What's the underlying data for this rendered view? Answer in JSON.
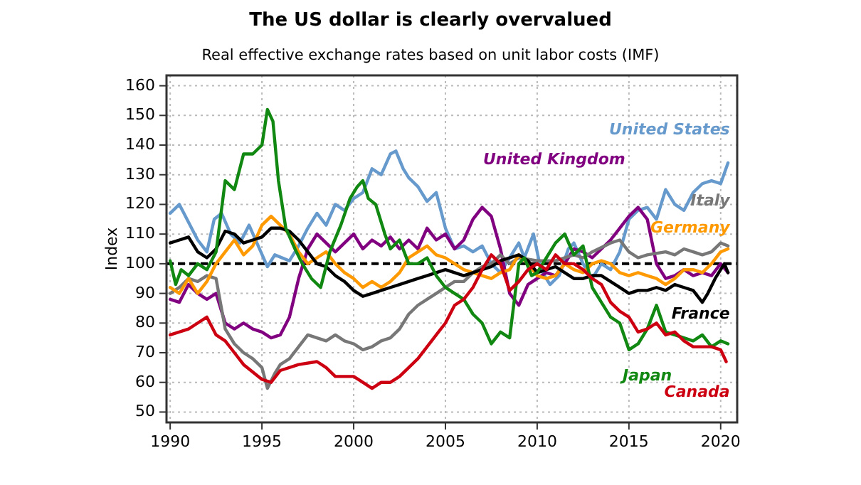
{
  "chart_data": {
    "type": "line",
    "title": "The US dollar is clearly overvalued",
    "subtitle": "Real effective exchange rates based on unit labor costs (IMF)",
    "ylabel": "Index",
    "xlim": [
      1989.8,
      2020.9
    ],
    "xticks": [
      1990,
      1995,
      2000,
      2005,
      2010,
      2015,
      2020
    ],
    "ylim": [
      46.5,
      163.5
    ],
    "yticks": [
      50,
      60,
      70,
      80,
      90,
      100,
      110,
      120,
      130,
      140,
      150,
      160
    ],
    "grid": true,
    "marker": "none",
    "line_style": "solid",
    "ref_lines": [
      {
        "axis": "y",
        "value": 100,
        "color": "#000000",
        "line_style": "dashed"
      }
    ],
    "series": [
      {
        "name": "United States",
        "color": "#6699cc",
        "x": [
          1990,
          1990.5,
          1991,
          1991.5,
          1992,
          1992.4,
          1992.8,
          1993.3,
          1993.8,
          1994.3,
          1994.8,
          1995.3,
          1995.7,
          1996.5,
          1997,
          1997.5,
          1998,
          1998.5,
          1999,
          1999.5,
          2000,
          2000.5,
          2001,
          2001.5,
          2002,
          2002.3,
          2002.7,
          2003,
          2003.5,
          2004,
          2004.5,
          2005,
          2005.5,
          2006,
          2006.5,
          2007,
          2007.5,
          2008,
          2008.5,
          2009,
          2009.3,
          2009.8,
          2010.2,
          2010.7,
          2011.2,
          2011.7,
          2012,
          2012.5,
          2013,
          2013.5,
          2014,
          2014.5,
          2015,
          2015.5,
          2016,
          2016.5,
          2017,
          2017.5,
          2018,
          2018.5,
          2019,
          2019.5,
          2020,
          2020.4
        ],
        "values": [
          117,
          120,
          114,
          108,
          104,
          115,
          117,
          110,
          107,
          113,
          106,
          99,
          103,
          101,
          106,
          112,
          117,
          113,
          120,
          118,
          122,
          124,
          132,
          130,
          137,
          138,
          132,
          129,
          126,
          121,
          124,
          112,
          105,
          106,
          104,
          106,
          100,
          97,
          102,
          107,
          102,
          110,
          98,
          93,
          96,
          105,
          107,
          100,
          95,
          100,
          98,
          104,
          115,
          118,
          119,
          115,
          125,
          120,
          118,
          124,
          127,
          128,
          127,
          134
        ]
      },
      {
        "name": "United Kingdom",
        "color": "#800080",
        "x": [
          1990,
          1990.5,
          1991,
          1991.5,
          1992,
          1992.5,
          1993,
          1993.5,
          1994,
          1994.5,
          1995,
          1995.5,
          1996,
          1996.5,
          1997,
          1997.5,
          1998,
          1998.5,
          1999,
          1999.5,
          2000,
          2000.5,
          2001,
          2001.5,
          2002,
          2002.5,
          2003,
          2003.5,
          2004,
          2004.5,
          2005,
          2005.5,
          2006,
          2006.5,
          2007,
          2007.5,
          2008,
          2008.5,
          2009,
          2009.5,
          2010,
          2010.5,
          2011,
          2011.5,
          2012,
          2012.5,
          2013,
          2013.5,
          2014,
          2014.5,
          2015,
          2015.5,
          2016,
          2016.5,
          2017,
          2017.5,
          2018,
          2018.5,
          2019,
          2019.5,
          2020,
          2020.4
        ],
        "values": [
          88,
          87,
          93,
          90,
          88,
          90,
          80,
          78,
          80,
          78,
          77,
          75,
          76,
          82,
          95,
          105,
          110,
          107,
          104,
          107,
          110,
          105,
          108,
          106,
          109,
          105,
          108,
          105,
          112,
          108,
          110,
          105,
          108,
          115,
          119,
          116,
          105,
          90,
          86,
          93,
          95,
          97,
          96,
          100,
          105,
          104,
          102,
          105,
          108,
          112,
          116,
          119,
          115,
          100,
          95,
          96,
          98,
          96,
          97,
          96,
          100,
          97
        ]
      },
      {
        "name": "Italy",
        "color": "#777777",
        "x": [
          1990,
          1990.5,
          1991,
          1991.5,
          1992,
          1992.5,
          1993,
          1993.5,
          1994,
          1994.5,
          1995,
          1995.3,
          1995.7,
          1996,
          1996.5,
          1997,
          1997.5,
          1998,
          1998.5,
          1999,
          1999.5,
          2000,
          2000.5,
          2001,
          2001.5,
          2002,
          2002.5,
          2003,
          2003.5,
          2004,
          2004.5,
          2005,
          2005.5,
          2006,
          2006.5,
          2007,
          2007.5,
          2008,
          2008.5,
          2009,
          2010,
          2011,
          2012,
          2012.5,
          2013,
          2014,
          2014.5,
          2015,
          2015.5,
          2016,
          2017,
          2017.5,
          2018,
          2018.5,
          2019,
          2019.5,
          2020,
          2020.4
        ],
        "values": [
          90,
          92,
          95,
          94,
          96,
          95,
          78,
          73,
          70,
          68,
          65,
          58,
          63,
          66,
          68,
          72,
          76,
          75,
          74,
          76,
          74,
          73,
          71,
          72,
          74,
          75,
          78,
          83,
          86,
          88,
          90,
          92,
          94,
          94,
          97,
          99,
          100,
          103,
          100,
          102,
          101,
          101,
          103,
          102,
          104,
          107,
          108,
          104,
          102,
          103,
          104,
          103,
          105,
          104,
          103,
          104,
          107,
          106
        ]
      },
      {
        "name": "Germany",
        "color": "#ff9900",
        "x": [
          1990,
          1990.5,
          1991,
          1991.5,
          1992,
          1992.5,
          1993,
          1993.5,
          1994,
          1994.5,
          1995,
          1995.5,
          1996,
          1996.5,
          1997,
          1997.5,
          1998,
          1998.5,
          1999,
          1999.5,
          2000,
          2000.5,
          2001,
          2001.5,
          2002,
          2002.5,
          2003,
          2003.5,
          2004,
          2004.5,
          2005,
          2005.5,
          2006,
          2006.5,
          2007,
          2007.5,
          2008,
          2008.5,
          2009,
          2009.5,
          2010,
          2010.5,
          2011,
          2011.5,
          2012,
          2012.5,
          2013,
          2013.5,
          2014,
          2014.5,
          2015,
          2015.5,
          2016,
          2016.5,
          2017,
          2017.5,
          2018,
          2018.5,
          2019,
          2019.5,
          2020,
          2020.4
        ],
        "values": [
          92,
          90,
          95,
          90,
          94,
          100,
          104,
          108,
          103,
          106,
          113,
          116,
          113,
          110,
          104,
          100,
          102,
          104,
          100,
          97,
          95,
          92,
          94,
          92,
          94,
          97,
          102,
          104,
          106,
          103,
          102,
          100,
          98,
          97,
          96,
          95,
          97,
          98,
          103,
          100,
          96,
          95,
          96,
          100,
          98,
          97,
          100,
          101,
          100,
          97,
          96,
          97,
          96,
          95,
          93,
          95,
          98,
          98,
          97,
          100,
          104,
          105
        ]
      },
      {
        "name": "France",
        "color": "#000000",
        "x": [
          1990,
          1990.5,
          1991,
          1991.5,
          1992,
          1992.5,
          1993,
          1993.5,
          1994,
          1994.5,
          1995,
          1995.5,
          1996,
          1996.5,
          1997,
          1997.5,
          1998,
          1998.5,
          1999,
          1999.5,
          2000,
          2000.5,
          2001,
          2001.5,
          2002,
          2002.5,
          2003,
          2003.5,
          2004,
          2004.5,
          2005,
          2005.5,
          2006,
          2006.5,
          2007,
          2007.5,
          2008,
          2008.5,
          2009,
          2009.5,
          2010,
          2010.5,
          2011,
          2011.5,
          2012,
          2012.5,
          2013,
          2013.5,
          2014,
          2014.5,
          2015,
          2015.5,
          2016,
          2016.5,
          2017,
          2017.5,
          2018,
          2018.5,
          2019,
          2019.3,
          2019.7,
          2020,
          2020.2,
          2020.4
        ],
        "values": [
          107,
          108,
          109,
          104,
          102,
          105,
          111,
          110,
          107,
          108,
          109,
          112,
          112,
          111,
          108,
          104,
          100,
          99,
          96,
          94,
          91,
          89,
          90,
          91,
          92,
          93,
          94,
          95,
          96,
          97,
          98,
          97,
          96,
          97,
          98,
          99,
          101,
          102,
          103,
          101,
          97,
          98,
          99,
          97,
          95,
          95,
          96,
          96,
          94,
          92,
          90,
          91,
          91,
          92,
          91,
          93,
          92,
          91,
          87,
          90,
          95,
          98,
          100,
          97
        ]
      },
      {
        "name": "Japan",
        "color": "#118811",
        "x": [
          1990,
          1990.3,
          1990.6,
          1991,
          1991.5,
          1992,
          1992.5,
          1993,
          1993.5,
          1994,
          1994.5,
          1995,
          1995.3,
          1995.6,
          1995.9,
          1996.3,
          1996.8,
          1997.2,
          1997.7,
          1998.2,
          1998.7,
          1999.3,
          1999.8,
          2000.2,
          2000.5,
          2000.8,
          2001.2,
          2001.7,
          2002,
          2002.5,
          2003,
          2003.5,
          2004,
          2004.5,
          2005,
          2005.5,
          2006,
          2006.5,
          2007,
          2007.5,
          2008,
          2008.5,
          2009,
          2009.3,
          2009.7,
          2010,
          2010.5,
          2011,
          2011.5,
          2012,
          2012.5,
          2013,
          2013.5,
          2014,
          2014.5,
          2015,
          2015.5,
          2016,
          2016.5,
          2017,
          2017.5,
          2018,
          2018.5,
          2019,
          2019.5,
          2020,
          2020.4
        ],
        "values": [
          101,
          93,
          98,
          96,
          100,
          98,
          104,
          128,
          125,
          137,
          137,
          140,
          152,
          148,
          128,
          112,
          105,
          100,
          95,
          92,
          104,
          113,
          122,
          126,
          128,
          122,
          120,
          110,
          105,
          108,
          100,
          100,
          102,
          96,
          92,
          90,
          88,
          83,
          80,
          73,
          77,
          75,
          100,
          102,
          96,
          97,
          102,
          107,
          110,
          103,
          106,
          92,
          87,
          82,
          80,
          71,
          73,
          78,
          86,
          77,
          76,
          75,
          74,
          76,
          72,
          74,
          73
        ]
      },
      {
        "name": "Canada",
        "color": "#cc0011",
        "x": [
          1990,
          1991,
          1991.5,
          1992,
          1992.5,
          1993,
          1993.5,
          1994,
          1995,
          1995.5,
          1996,
          1997,
          1998,
          1998.5,
          1999,
          2000,
          2000.5,
          2001,
          2001.5,
          2002,
          2002.5,
          2003,
          2003.5,
          2004,
          2004.5,
          2005,
          2005.5,
          2006,
          2006.5,
          2007,
          2007.5,
          2008,
          2008.5,
          2009,
          2009.5,
          2010,
          2010.5,
          2011,
          2011.5,
          2012,
          2012.5,
          2013,
          2013.5,
          2014,
          2014.5,
          2015,
          2015.5,
          2016,
          2016.5,
          2017,
          2017.5,
          2018,
          2018.5,
          2019,
          2019.5,
          2020,
          2020.3
        ],
        "values": [
          76,
          78,
          80,
          82,
          76,
          74,
          70,
          66,
          61,
          60,
          64,
          66,
          67,
          65,
          62,
          62,
          60,
          58,
          60,
          60,
          62,
          65,
          68,
          72,
          76,
          80,
          86,
          88,
          92,
          98,
          103,
          100,
          91,
          94,
          98,
          100,
          98,
          103,
          100,
          100,
          98,
          95,
          93,
          87,
          84,
          82,
          77,
          78,
          80,
          76,
          77,
          74,
          72,
          72,
          72,
          71,
          67
        ]
      }
    ]
  }
}
